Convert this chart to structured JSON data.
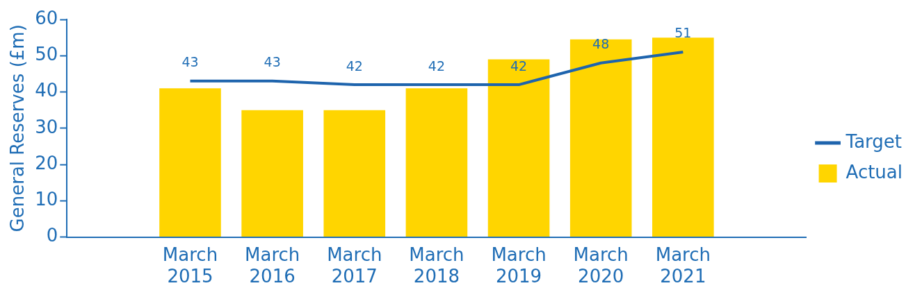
{
  "chart_data": {
    "type": "bar",
    "ylabel": "General Reserves (£m)",
    "categories": [
      null,
      "March 2015",
      "March 2016",
      "March 2017",
      "March 2018",
      "March 2019",
      "March 2020",
      "March 2021",
      null
    ],
    "series": [
      {
        "name": "Target",
        "type": "line",
        "color": "#1e64ad",
        "values": [
          null,
          43,
          43,
          42,
          42,
          42,
          48,
          51,
          null
        ],
        "data_labels": true
      },
      {
        "name": "Actual",
        "color": "#ffd500",
        "values": [
          null,
          41,
          35,
          35,
          41,
          49,
          54.5,
          55,
          null
        ]
      }
    ],
    "ylim": [
      0,
      60
    ],
    "yticks": [
      0,
      10,
      20,
      30,
      40,
      50,
      60
    ],
    "grid": false,
    "legend": "right",
    "marker": "none"
  }
}
